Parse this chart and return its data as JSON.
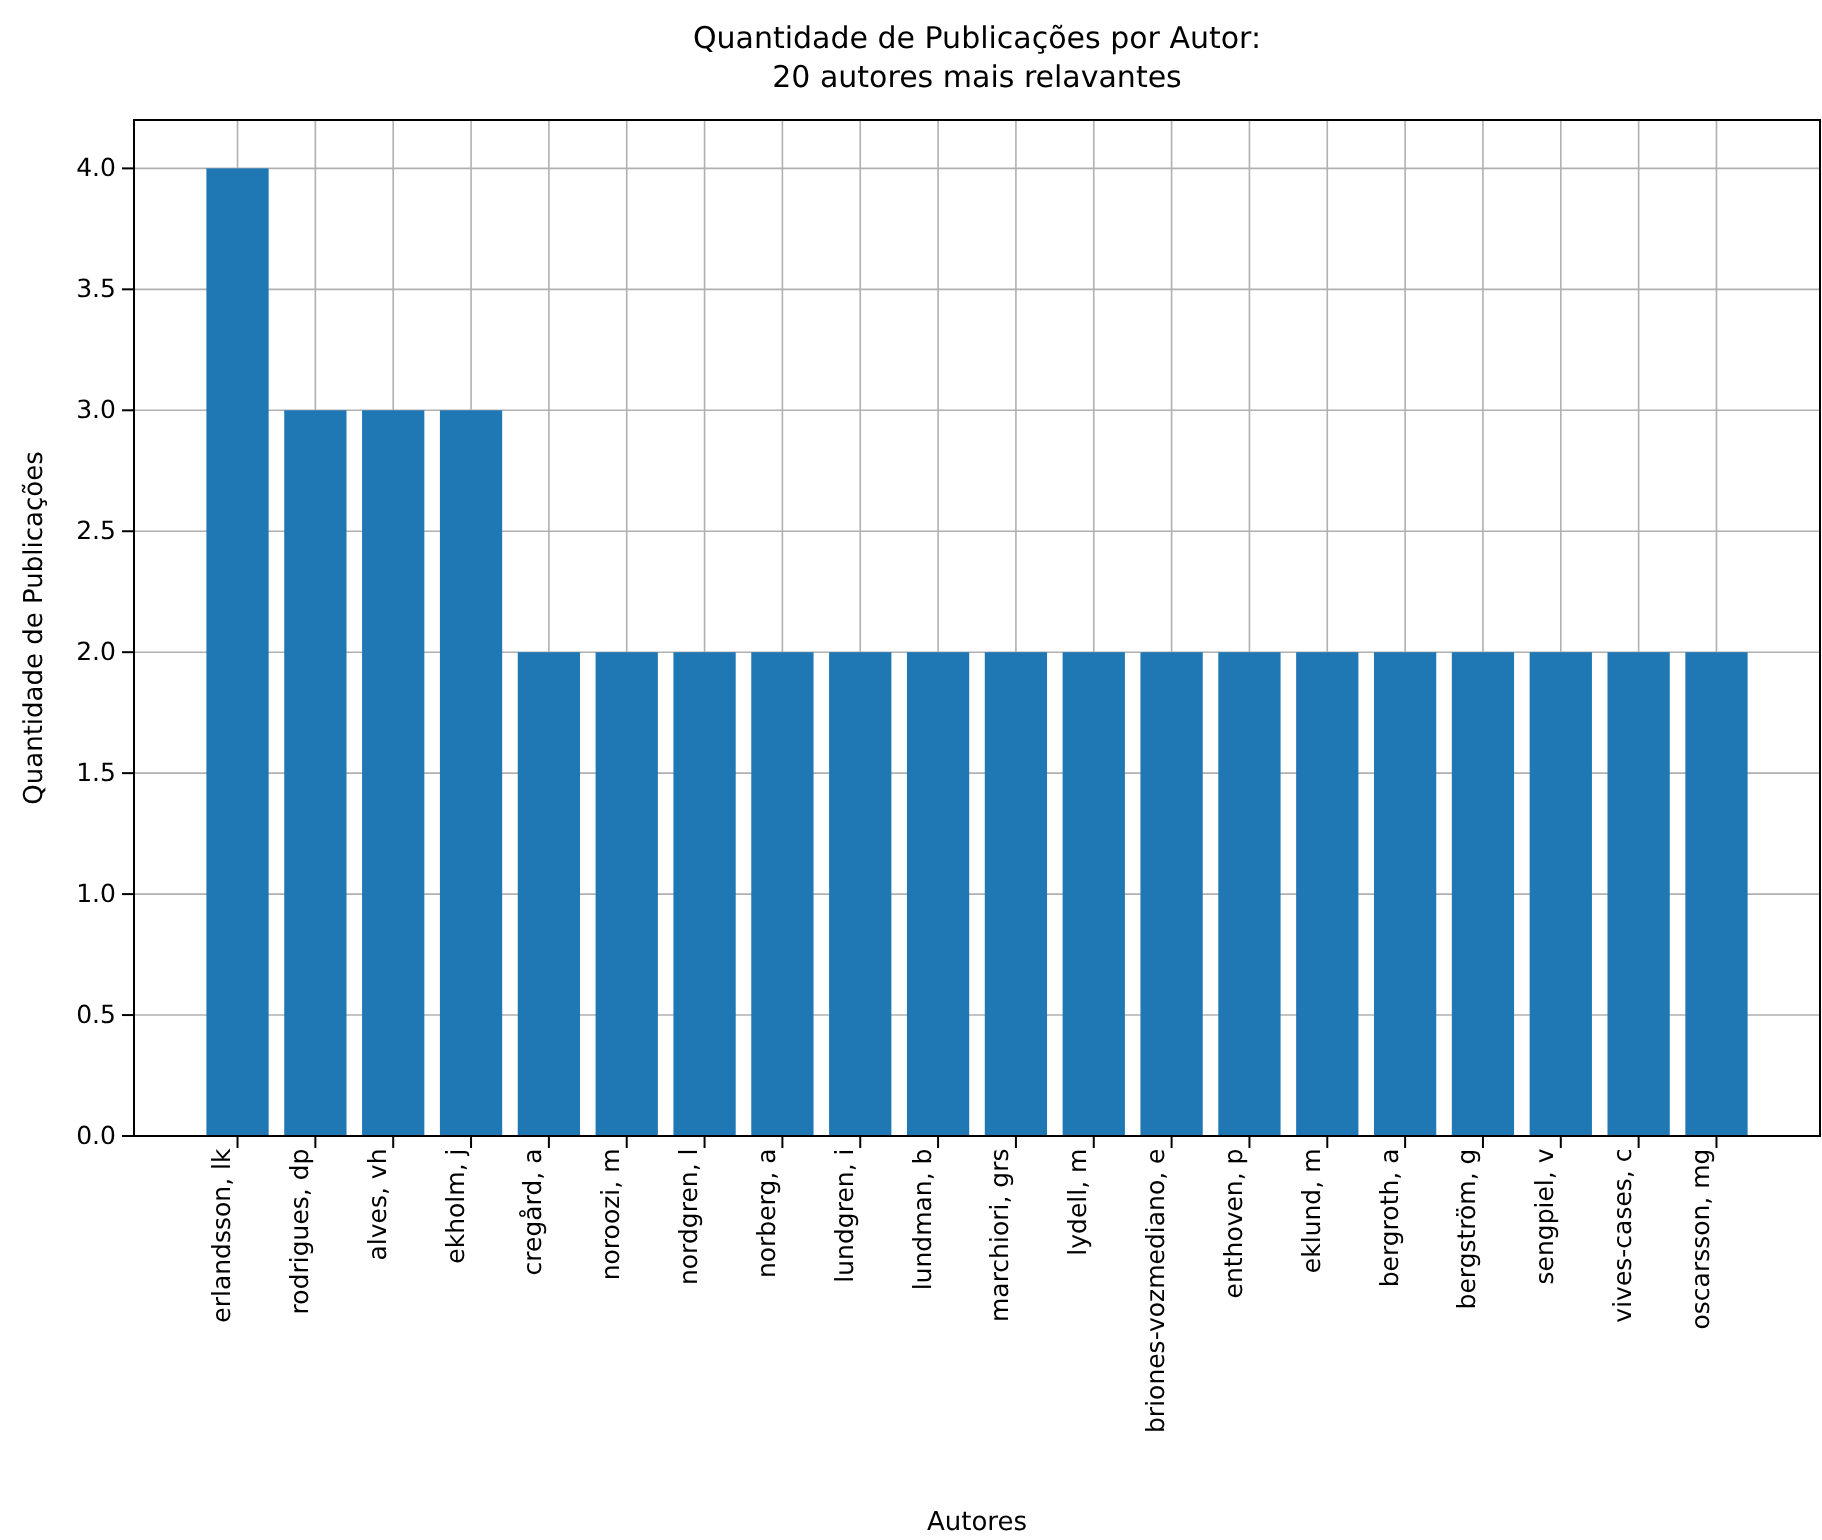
{
  "chart_data": {
    "type": "bar",
    "title": "Quantidade de Publicações por Autor:\n20 autores mais relavantes",
    "xlabel": "Autores",
    "ylabel": "Quantidade de Publicações",
    "categories": [
      "erlandsson, lk",
      "rodrigues, dp",
      "alves, vh",
      "ekholm, j",
      "cregård, a",
      "noroozi, m",
      "nordgren, l",
      "norberg, a",
      "lundgren, i",
      "lundman, b",
      "marchiori, grs",
      "lydell, m",
      "briones-vozmediano, e",
      "enthoven, p",
      "eklund, m",
      "bergroth, a",
      "bergström, g",
      "sengpiel, v",
      "vives-cases, c",
      "oscarsson, mg"
    ],
    "series": [
      {
        "color": "#1f77b4",
        "values": [
          4,
          3,
          3,
          3,
          2,
          2,
          2,
          2,
          2,
          2,
          2,
          2,
          2,
          2,
          2,
          2,
          2,
          2,
          2,
          2
        ]
      }
    ],
    "ylim": [
      0,
      4.2
    ],
    "yticks": [
      {
        "value": 0,
        "label": "0.0"
      },
      {
        "value": 0.5,
        "label": "0.5"
      },
      {
        "value": 1,
        "label": "1.0"
      },
      {
        "value": 1.5,
        "label": "1.5"
      },
      {
        "value": 2,
        "label": "2.0"
      },
      {
        "value": 2.5,
        "label": "2.5"
      },
      {
        "value": 3,
        "label": "3.0"
      },
      {
        "value": 3.5,
        "label": "3.5"
      },
      {
        "value": 4,
        "label": "4.0"
      }
    ],
    "grid": true
  }
}
